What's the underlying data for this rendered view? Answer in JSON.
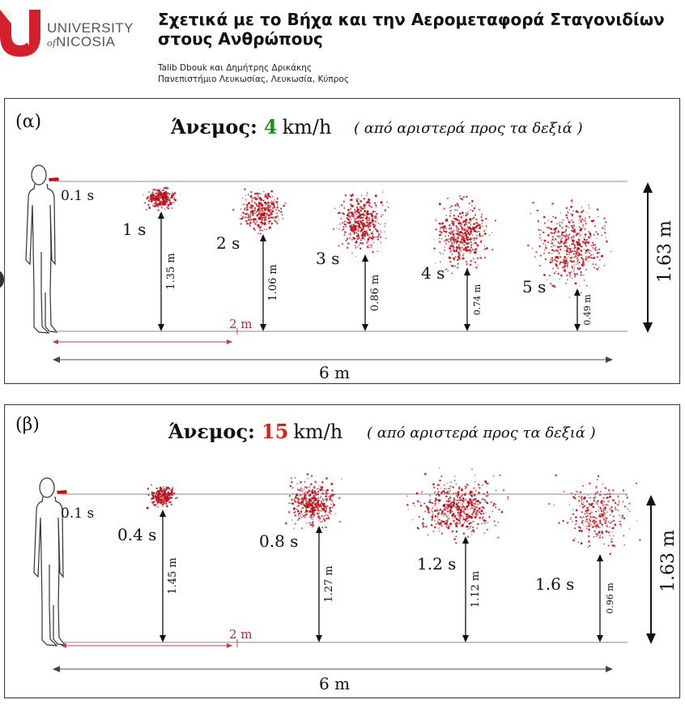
{
  "header": {
    "university_line1": "UNIVERSITY",
    "university_of": "of",
    "university_line2": "NICOSIA",
    "title_line1": "Σχετικά με το Βήχα και την Αερομεταφορά Σταγονιδίων",
    "title_line2": "στους Ανθρώπους",
    "authors": "Talib Dbouk και Δημήτρης Δρικάκης",
    "affiliation": "Πανεπιστήμιο Λευκωσίας, Λευκωσία, Κύπρος"
  },
  "colors": {
    "brand_red": "#d2202f",
    "droplet": "#b3121c",
    "green": "#238b23",
    "red": "#e31b1b"
  },
  "panels": [
    {
      "label": "(α)",
      "wind_label": "Άνεμος:",
      "wind_speed": "4",
      "wind_unit": "km/h",
      "direction": "( από αριστερά προς τα δεξιά )",
      "mouth_time": "0.1 s",
      "clouds": [
        {
          "time": "1 s",
          "height": "1.35 m"
        },
        {
          "time": "2 s",
          "height": "1.06 m"
        },
        {
          "time": "3 s",
          "height": "0.86 m"
        },
        {
          "time": "4 s",
          "height": "0.74 m"
        },
        {
          "time": "5 s",
          "height": "0.49 m"
        }
      ],
      "ref_distance": "2 m",
      "total_height": "1.63 m",
      "total_width": "6 m"
    },
    {
      "label": "(β)",
      "wind_label": "Άνεμος:",
      "wind_speed": "15",
      "wind_unit": "km/h",
      "direction": "( από αριστερά προς τα δεξιά )",
      "mouth_time": "0.1 s",
      "clouds": [
        {
          "time": "0.4 s",
          "height": "1.45 m"
        },
        {
          "time": "0.8 s",
          "height": "1.27 m"
        },
        {
          "time": "1.2 s",
          "height": "1.12 m"
        },
        {
          "time": "1.6 s",
          "height": "0.96 m"
        }
      ],
      "ref_distance": "2 m",
      "total_height": "1.63 m",
      "total_width": "6 m"
    }
  ]
}
